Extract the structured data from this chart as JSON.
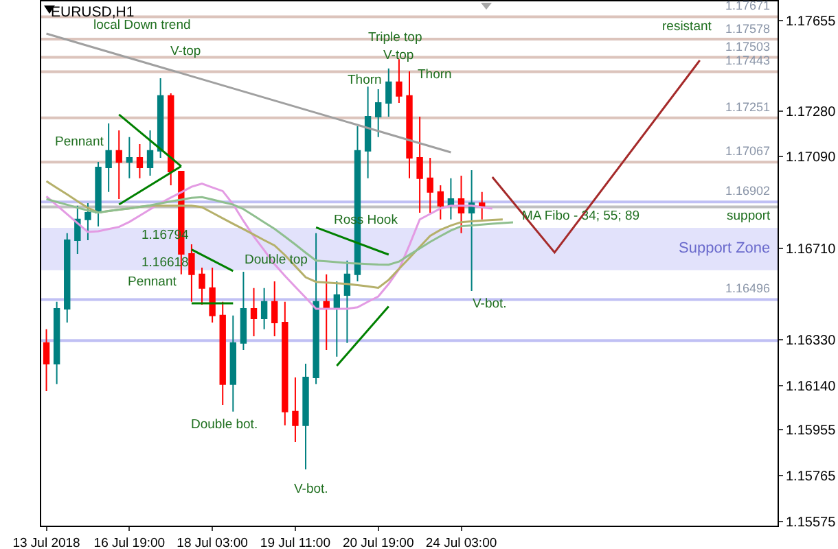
{
  "chart_data": {
    "type": "candlestick",
    "title": "EURUSD,H1",
    "categories": [
      "13 Jul 2018",
      null,
      null,
      null,
      null,
      null,
      null,
      null,
      "16 Jul 19:00",
      null,
      null,
      null,
      null,
      null,
      null,
      null,
      "18 Jul 03:00",
      null,
      null,
      null,
      null,
      null,
      null,
      null,
      "19 Jul 11:00",
      null,
      null,
      null,
      null,
      null,
      null,
      null,
      "20 Jul 19:00",
      null,
      null,
      null,
      null,
      null,
      null,
      null,
      "24 Jul 03:00",
      null,
      null,
      null,
      null,
      null,
      null,
      null,
      null,
      null,
      null,
      null,
      null,
      null,
      null,
      null,
      null,
      null,
      null,
      null,
      null,
      null,
      null,
      null,
      null,
      null,
      null,
      null,
      null,
      null,
      null
    ],
    "ohlc": [
      [
        1.16316,
        1.16373,
        1.16116,
        1.1623
      ],
      [
        1.1623,
        1.16487,
        1.16145,
        1.16458
      ],
      [
        1.16458,
        1.16772,
        1.16401,
        1.16743
      ],
      [
        1.16743,
        1.16886,
        1.16686,
        1.16829
      ],
      [
        1.16829,
        1.16897,
        1.16743,
        1.16857
      ],
      [
        1.16857,
        1.17068,
        1.168,
        1.17045
      ],
      [
        1.17045,
        1.17228,
        1.16943,
        1.17114
      ],
      [
        1.17114,
        1.17199,
        1.16914,
        1.17068
      ],
      [
        1.17068,
        1.17171,
        1.17,
        1.17085
      ],
      [
        1.17085,
        1.17142,
        1.17,
        1.17045
      ],
      [
        1.17045,
        1.17199,
        1.17011,
        1.17114
      ],
      [
        1.17114,
        1.17416,
        1.17085,
        1.17342
      ],
      [
        1.17342,
        1.17353,
        1.16971,
        1.17028
      ],
      [
        1.17028,
        1.17028,
        1.16601,
        1.16686
      ],
      [
        1.16686,
        1.16726,
        1.16487,
        1.16601
      ],
      [
        1.16601,
        1.16629,
        1.16475,
        1.16544
      ],
      [
        1.16544,
        1.16629,
        1.16401,
        1.1643
      ],
      [
        1.1643,
        1.16487,
        1.16059,
        1.16145
      ],
      [
        1.16145,
        1.1643,
        1.16031,
        1.16316
      ],
      [
        1.16316,
        1.16612,
        1.16287,
        1.16458
      ],
      [
        1.16458,
        1.16544,
        1.16344,
        1.16418
      ],
      [
        1.16418,
        1.16544,
        1.16373,
        1.16487
      ],
      [
        1.16487,
        1.16572,
        1.16344,
        1.16401
      ],
      [
        1.16401,
        1.16487,
        1.15974,
        1.16031
      ],
      [
        1.16031,
        1.16173,
        1.15905,
        1.15974
      ],
      [
        1.15974,
        1.1623,
        1.15791,
        1.16173
      ],
      [
        1.16173,
        1.16772,
        1.16145,
        1.16487
      ],
      [
        1.16487,
        1.16601,
        1.16287,
        1.16458
      ],
      [
        1.16458,
        1.16572,
        1.16259,
        1.16515
      ],
      [
        1.16515,
        1.16658,
        1.16316,
        1.16601
      ],
      [
        1.16601,
        1.17216,
        1.16572,
        1.17114
      ],
      [
        1.17114,
        1.17381,
        1.17,
        1.17256
      ],
      [
        1.17256,
        1.1737,
        1.17171,
        1.17313
      ],
      [
        1.17313,
        1.17456,
        1.17256,
        1.17399
      ],
      [
        1.17399,
        1.17495,
        1.17313,
        1.17342
      ],
      [
        1.17342,
        1.17444,
        1.17,
        1.17085
      ],
      [
        1.17085,
        1.17256,
        1.16857,
        1.17
      ],
      [
        1.17,
        1.17085,
        1.16857,
        1.16943
      ],
      [
        1.16943,
        1.16971,
        1.16829,
        1.16886
      ],
      [
        1.16886,
        1.17,
        1.16829,
        1.16914
      ],
      [
        1.16914,
        1.17011,
        1.16772,
        1.16857
      ],
      [
        1.16857,
        1.17034,
        1.16532,
        1.16897
      ],
      [
        1.16897,
        1.16943,
        1.16829,
        1.16886
      ],
      null,
      null,
      null,
      null,
      null,
      null,
      null,
      null,
      null,
      null,
      null,
      null,
      null,
      null,
      null,
      null,
      null,
      null,
      null,
      null,
      null,
      null,
      null,
      null,
      null,
      null,
      null,
      null
    ],
    "colors": [
      "#ff0000",
      "#008080",
      "#008080",
      "#008080",
      "#008080",
      "#008080",
      "#008080",
      "#ff0000",
      "#008080",
      "#ff0000",
      "#008080",
      "#008080",
      "#ff0000",
      "#ff0000",
      "#ff0000",
      "#ff0000",
      "#ff0000",
      "#ff0000",
      "#008080",
      "#008080",
      "#ff0000",
      "#008080",
      "#ff0000",
      "#ff0000",
      "#ff0000",
      "#008080",
      "#008080",
      "#ff0000",
      "#008080",
      "#008080",
      "#008080",
      "#008080",
      "#008080",
      "#008080",
      "#ff0000",
      "#ff0000",
      "#ff0000",
      "#ff0000",
      "#ff0000",
      "#008080",
      "#ff0000",
      "#008080",
      "#ff0000",
      null,
      null,
      null,
      null,
      null,
      null,
      null,
      null,
      null,
      null,
      null,
      null,
      null,
      null,
      null,
      null,
      null,
      null,
      null,
      null,
      null,
      null,
      null,
      null,
      null,
      null,
      null,
      null
    ],
    "series": [
      {
        "type": "line",
        "color": "#e39be3",
        "values": [
          1.16925,
          1.16888,
          1.16851,
          1.16814,
          1.16777,
          1.1678,
          1.16789,
          1.16798,
          1.16819,
          1.16845,
          1.16871,
          1.16897,
          1.1692,
          1.16942,
          1.16965,
          1.16978,
          1.16962,
          1.16947,
          1.16892,
          1.16823,
          1.16758,
          1.16701,
          1.16643,
          1.16595,
          1.16549,
          1.16504,
          1.16458,
          1.16458,
          1.16458,
          1.16458,
          1.16464,
          1.16487,
          1.16509,
          1.16561,
          1.16622,
          1.16722,
          1.16829,
          1.16852,
          1.16875,
          1.16886,
          1.16886,
          1.16886,
          1.1688,
          1.16874,
          null,
          null,
          null,
          null,
          null,
          null,
          null,
          null,
          null,
          null,
          null,
          null,
          null,
          null,
          null,
          null,
          null,
          null,
          null,
          null,
          null,
          null,
          null,
          null,
          null,
          null,
          null
        ]
      },
      {
        "type": "line",
        "color": "#b5b06a",
        "values": [
          1.16988,
          1.1696,
          1.16933,
          1.16905,
          1.16877,
          1.16858,
          1.16864,
          1.1687,
          1.16875,
          1.16881,
          1.16886,
          1.16886,
          1.16886,
          1.16886,
          1.16886,
          1.1688,
          1.16857,
          1.16834,
          1.16811,
          1.16789,
          1.16766,
          1.16743,
          1.16721,
          1.16681,
          1.16635,
          1.16589,
          1.1657,
          1.16567,
          1.16564,
          1.16561,
          1.16556,
          1.16551,
          1.16545,
          1.16578,
          1.16624,
          1.16669,
          1.16715,
          1.16761,
          1.16786,
          1.16804,
          1.16818,
          1.16821,
          1.16824,
          1.16827,
          1.16829,
          null,
          null,
          null,
          null,
          null,
          null,
          null,
          null,
          null,
          null,
          null,
          null,
          null,
          null,
          null,
          null,
          null,
          null,
          null,
          null,
          null,
          null,
          null,
          null,
          null,
          null
        ]
      },
      {
        "type": "line",
        "color": "#8fbf8f",
        "values": [
          1.16914,
          1.16902,
          1.1689,
          1.16878,
          1.16866,
          1.16858,
          1.16864,
          1.1687,
          1.16875,
          1.16881,
          1.16888,
          1.16896,
          1.16904,
          1.16911,
          1.16919,
          1.16922,
          1.16912,
          1.16901,
          1.16891,
          1.16872,
          1.16845,
          1.16817,
          1.1679,
          1.16758,
          1.16725,
          1.16691,
          1.16658,
          1.16655,
          1.16652,
          1.16648,
          1.16646,
          1.16644,
          1.16642,
          1.16641,
          1.16654,
          1.16682,
          1.16709,
          1.16736,
          1.1676,
          1.16783,
          1.16801,
          1.16804,
          1.16808,
          1.16811,
          1.16814,
          1.16817,
          null,
          null,
          null,
          null,
          null,
          null,
          null,
          null,
          null,
          null,
          null,
          null,
          null,
          null,
          null,
          null,
          null,
          null,
          null,
          null,
          null,
          null,
          null,
          null,
          null
        ]
      },
      {
        "type": "line",
        "color": "#a0a0a0",
        "values": [
          1.17601,
          null,
          null,
          null,
          null,
          null,
          null,
          null,
          null,
          null,
          null,
          null,
          null,
          null,
          null,
          null,
          null,
          null,
          null,
          null,
          null,
          null,
          null,
          null,
          null,
          null,
          null,
          null,
          null,
          null,
          null,
          null,
          null,
          null,
          null,
          null,
          null,
          null,
          null,
          1.17108,
          null,
          null,
          null,
          null,
          null,
          null,
          null,
          null,
          null,
          null,
          null,
          null,
          null,
          null,
          null,
          null,
          null,
          null,
          null,
          null,
          null,
          null,
          null,
          null,
          null,
          null,
          null,
          null,
          null,
          null,
          null
        ]
      },
      {
        "type": "line",
        "color": "#008000",
        "values": [
          null,
          null,
          null,
          null,
          null,
          null,
          null,
          1.17265,
          null,
          null,
          null,
          null,
          null,
          1.1705,
          null,
          null,
          null,
          null,
          null,
          null,
          null,
          null,
          null,
          null,
          null,
          null,
          null,
          null,
          null,
          null,
          null,
          null,
          null,
          null,
          null,
          null,
          null,
          null,
          null,
          null,
          null,
          null,
          null,
          null,
          null,
          null,
          null,
          null,
          null,
          null,
          null,
          null,
          null,
          null,
          null,
          null,
          null,
          null,
          null,
          null,
          null,
          null,
          null,
          null,
          null,
          null,
          null,
          null,
          null,
          null,
          null
        ]
      },
      {
        "type": "line",
        "color": "#008000",
        "values": [
          null,
          null,
          null,
          null,
          null,
          null,
          null,
          1.16891,
          null,
          null,
          null,
          null,
          null,
          1.1705,
          null,
          null,
          null,
          null,
          null,
          null,
          null,
          null,
          null,
          null,
          null,
          null,
          null,
          null,
          null,
          null,
          null,
          null,
          null,
          null,
          null,
          null,
          null,
          null,
          null,
          null,
          null,
          null,
          null,
          null,
          null,
          null,
          null,
          null,
          null,
          null,
          null,
          null,
          null,
          null,
          null,
          null,
          null,
          null,
          null,
          null,
          null,
          null,
          null,
          null,
          null,
          null,
          null,
          null,
          null,
          null,
          null
        ]
      },
      {
        "type": "line",
        "color": "#008000",
        "values": [
          null,
          null,
          null,
          null,
          null,
          null,
          null,
          null,
          null,
          null,
          null,
          null,
          null,
          null,
          1.16704,
          null,
          null,
          null,
          1.16615,
          null,
          null,
          null,
          null,
          null,
          null,
          null,
          null,
          null,
          null,
          null,
          null,
          null,
          null,
          null,
          null,
          null,
          null,
          null,
          null,
          null,
          null,
          null,
          null,
          null,
          null,
          null,
          null,
          null,
          null,
          null,
          null,
          null,
          null,
          null,
          null,
          null,
          null,
          null,
          null,
          null,
          null,
          null,
          null,
          null,
          null,
          null,
          null,
          null,
          null,
          null,
          null
        ]
      },
      {
        "type": "line",
        "color": "#008000",
        "values": [
          null,
          null,
          null,
          null,
          null,
          null,
          null,
          null,
          null,
          null,
          null,
          null,
          null,
          null,
          1.16481,
          null,
          null,
          null,
          1.16481,
          null,
          null,
          null,
          null,
          null,
          null,
          null,
          null,
          null,
          null,
          null,
          null,
          null,
          null,
          null,
          null,
          null,
          null,
          null,
          null,
          null,
          null,
          null,
          null,
          null,
          null,
          null,
          null,
          null,
          null,
          null,
          null,
          null,
          null,
          null,
          null,
          null,
          null,
          null,
          null,
          null,
          null,
          null,
          null,
          null,
          null,
          null,
          null,
          null,
          null,
          null,
          null
        ]
      },
      {
        "type": "line",
        "color": "#008000",
        "values": [
          null,
          null,
          null,
          null,
          null,
          null,
          null,
          null,
          null,
          null,
          null,
          null,
          null,
          null,
          null,
          null,
          null,
          null,
          null,
          null,
          null,
          null,
          null,
          null,
          null,
          null,
          1.16796,
          null,
          null,
          null,
          null,
          null,
          null,
          1.16683,
          null,
          null,
          null,
          null,
          null,
          null,
          null,
          null,
          null,
          null,
          null,
          null,
          null,
          null,
          null,
          null,
          null,
          null,
          null,
          null,
          null,
          null,
          null,
          null,
          null,
          null,
          null,
          null,
          null,
          null,
          null,
          null,
          null,
          null,
          null,
          null,
          null
        ]
      },
      {
        "type": "line",
        "color": "#008000",
        "values": [
          null,
          null,
          null,
          null,
          null,
          null,
          null,
          null,
          null,
          null,
          null,
          null,
          null,
          null,
          null,
          null,
          null,
          null,
          null,
          null,
          null,
          null,
          null,
          null,
          null,
          null,
          null,
          null,
          1.16221,
          null,
          null,
          null,
          null,
          1.16468,
          null,
          null,
          null,
          null,
          null,
          null,
          null,
          null,
          null,
          null,
          null,
          null,
          null,
          null,
          null,
          null,
          null,
          null,
          null,
          null,
          null,
          null,
          null,
          null,
          null,
          null,
          null,
          null,
          null,
          null,
          null,
          null,
          null,
          null,
          null,
          null,
          null
        ]
      },
      {
        "type": "line",
        "color": "#a52a2a",
        "values": [
          null,
          null,
          null,
          null,
          null,
          null,
          null,
          null,
          null,
          null,
          null,
          null,
          null,
          null,
          null,
          null,
          null,
          null,
          null,
          null,
          null,
          null,
          null,
          null,
          null,
          null,
          null,
          null,
          null,
          null,
          null,
          null,
          null,
          null,
          null,
          null,
          null,
          null,
          null,
          null,
          null,
          null,
          null,
          1.17005,
          null,
          null,
          null,
          null,
          null,
          1.16692,
          null,
          null,
          null,
          null,
          null,
          null,
          null,
          null,
          null,
          null,
          null,
          null,
          null,
          1.1749,
          null,
          null,
          null,
          null,
          null,
          null,
          null
        ]
      }
    ],
    "ylim": [
      1.15557,
      1.17735
    ],
    "yticks": [
      {
        "value": 1.17655,
        "label": "1.17655"
      },
      {
        "value": 1.1728,
        "label": "1.17280"
      },
      {
        "value": 1.1709,
        "label": "1.17090"
      },
      {
        "value": 1.1671,
        "label": "1.16710"
      },
      {
        "value": 1.1633,
        "label": "1.16330"
      },
      {
        "value": 1.1614,
        "label": "1.16140"
      },
      {
        "value": 1.15955,
        "label": "1.15955"
      },
      {
        "value": 1.15765,
        "label": "1.15765"
      },
      {
        "value": 1.15575,
        "label": "1.15575"
      }
    ],
    "ref_lines": [
      {
        "axis": "y",
        "value": 1.17671,
        "label": "1.17671",
        "color": "#dcc4bc"
      },
      {
        "axis": "y",
        "value": 1.17578,
        "label": "1.17578",
        "color": "#dcc4bc"
      },
      {
        "axis": "y",
        "value": 1.17503,
        "label": "1.17503",
        "color": "#dcc4bc"
      },
      {
        "axis": "y",
        "value": 1.17443,
        "label": "1.17443",
        "color": "#dcc4bc"
      },
      {
        "axis": "y",
        "value": 1.17251,
        "label": "1.17251",
        "color": "#dcc4bc"
      },
      {
        "axis": "y",
        "value": 1.17067,
        "label": "1.17067",
        "color": "#dcc4bc"
      },
      {
        "axis": "y",
        "value": 1.16902,
        "label": "1.16902",
        "color": "#c0c0f4"
      },
      {
        "axis": "y",
        "value": 1.16881,
        "label": null,
        "color": "#c0c0c0"
      },
      {
        "axis": "y",
        "value": 1.16496,
        "label": "1.16496",
        "color": "#c0c0f4"
      },
      {
        "axis": "y",
        "value": 1.16326,
        "label": null,
        "color": "#c0c0f4"
      }
    ],
    "bands": [
      {
        "axis": "y",
        "from": 1.16618,
        "to": 1.16794,
        "label": "Support Zone",
        "color": "#e2e2fb"
      }
    ],
    "annotations": [
      "local Down trend",
      "V-top",
      "Pennant",
      "Pennant",
      "1.16794",
      "1.16618",
      "Double top",
      "Double bot.",
      "V-bot.",
      "Triple top",
      "V-top",
      "Thorn",
      "Thorn",
      "Ross Hook",
      "V-bot.",
      "MA Fibo - 34; 55; 89",
      "resistant",
      "support"
    ]
  }
}
